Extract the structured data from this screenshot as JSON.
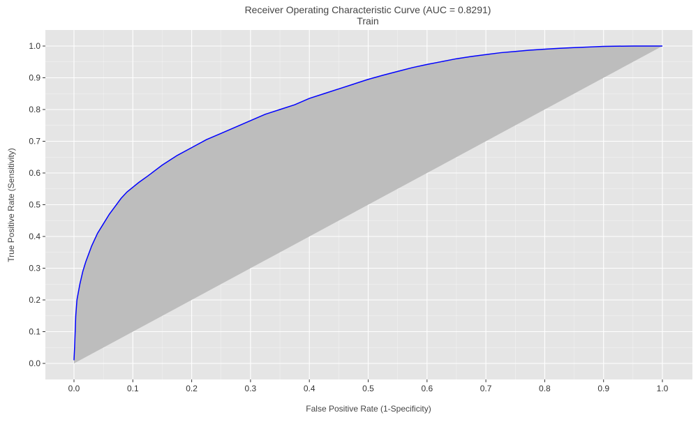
{
  "chart_data": {
    "type": "line",
    "title": "Receiver Operating Characteristic Curve (AUC = 0.8291)",
    "subtitle": "Train",
    "xlabel": "False Positive Rate (1-Specificity)",
    "ylabel": "True Positive Rate (Sensitivity)",
    "xlim": [
      0,
      1
    ],
    "ylim": [
      0,
      1
    ],
    "x_ticks": [
      "0.0",
      "0.1",
      "0.2",
      "0.3",
      "0.4",
      "0.5",
      "0.6",
      "0.7",
      "0.8",
      "0.9",
      "1.0"
    ],
    "y_ticks": [
      "0.0",
      "0.1",
      "0.2",
      "0.3",
      "0.4",
      "0.5",
      "0.6",
      "0.7",
      "0.8",
      "0.9",
      "1.0"
    ],
    "grid": true,
    "legend": "none",
    "colors": {
      "panel_background": "#e5e5e5",
      "grid": "#ffffff",
      "roc_line": "#0000ff",
      "shaded_area": "#bdbdbd"
    },
    "series": [
      {
        "x": [
          0.0,
          0.001,
          0.002,
          0.003,
          0.005,
          0.008,
          0.01,
          0.015,
          0.02,
          0.025,
          0.03,
          0.04,
          0.05,
          0.06,
          0.07,
          0.08,
          0.09,
          0.1,
          0.11,
          0.125,
          0.15,
          0.175,
          0.2,
          0.225,
          0.25,
          0.275,
          0.3,
          0.325,
          0.35,
          0.375,
          0.4,
          0.425,
          0.45,
          0.475,
          0.5,
          0.525,
          0.55,
          0.575,
          0.6,
          0.625,
          0.65,
          0.675,
          0.7,
          0.725,
          0.75,
          0.775,
          0.8,
          0.825,
          0.85,
          0.875,
          0.9,
          0.95,
          1.0
        ],
        "y": [
          0.01,
          0.05,
          0.1,
          0.15,
          0.2,
          0.23,
          0.25,
          0.29,
          0.32,
          0.345,
          0.37,
          0.41,
          0.44,
          0.47,
          0.495,
          0.52,
          0.54,
          0.555,
          0.57,
          0.59,
          0.625,
          0.655,
          0.68,
          0.705,
          0.725,
          0.745,
          0.765,
          0.785,
          0.8,
          0.815,
          0.835,
          0.85,
          0.865,
          0.88,
          0.895,
          0.908,
          0.92,
          0.932,
          0.942,
          0.951,
          0.96,
          0.967,
          0.973,
          0.979,
          0.983,
          0.987,
          0.99,
          0.993,
          0.995,
          0.997,
          0.999,
          1.0,
          1.0
        ]
      }
    ]
  }
}
